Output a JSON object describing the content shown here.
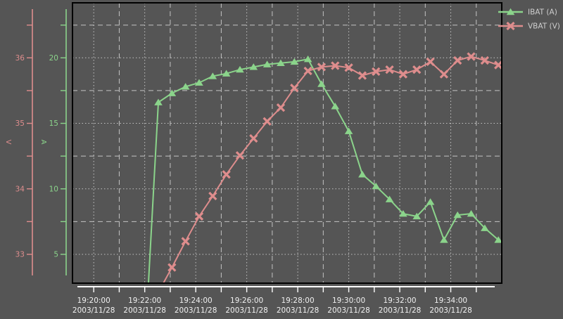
{
  "colors": {
    "background": "#555555",
    "plot_border": "#000000",
    "grid": "#c3c3c3",
    "x_axis_line": "#ffffff",
    "x_tick_label": "#f0f0f0",
    "legend_text": "#cfcfcf",
    "ibat_green": "#8bd48b",
    "vbat_pink": "#de8d8d"
  },
  "chart_data": {
    "type": "line",
    "title": "",
    "date": "2003/11/28",
    "x_axis": {
      "range": [
        "19:19:10",
        "19:36:00"
      ],
      "major_tick_labels": [
        "19:20:00",
        "19:22:00",
        "19:24:00",
        "19:26:00",
        "19:28:00",
        "19:30:00",
        "19:32:00",
        "19:34:00"
      ],
      "date_line": "2003/11/28",
      "minor_tick_interval_minutes": 1,
      "major_tick_interval_minutes": 2
    },
    "y_axes": [
      {
        "id": "V",
        "label": "V",
        "color": "#de8d8d",
        "range": [
          32.56,
          36.84
        ],
        "major_ticks": [
          36,
          35,
          34,
          33
        ],
        "minor_step": 0.5
      },
      {
        "id": "A",
        "label": "A",
        "color": "#8bd48b",
        "range": [
          2.8,
          24.2
        ],
        "major_ticks": [
          20,
          15,
          10,
          5
        ],
        "minor_step": 2.5
      }
    ],
    "grid": {
      "major_style": "dotted",
      "minor_style": "dashed",
      "on": true
    },
    "legend": {
      "position": "top-right",
      "entries": [
        "IBAT (A)",
        "VBAT (V)"
      ]
    },
    "series": [
      {
        "name": "IBAT (A)",
        "axis": "A",
        "color": "#8bd48b",
        "marker": "triangle",
        "points": [
          [
            "19:22:04",
            0.0
          ],
          [
            "19:22:32",
            16.6
          ],
          [
            "19:23:04",
            17.3
          ],
          [
            "19:23:36",
            17.8
          ],
          [
            "19:24:08",
            18.1
          ],
          [
            "19:24:40",
            18.6
          ],
          [
            "19:25:12",
            18.8
          ],
          [
            "19:25:44",
            19.1
          ],
          [
            "19:26:16",
            19.3
          ],
          [
            "19:26:48",
            19.5
          ],
          [
            "19:27:20",
            19.6
          ],
          [
            "19:27:52",
            19.7
          ],
          [
            "19:28:24",
            19.9
          ],
          [
            "19:28:56",
            18.0
          ],
          [
            "19:29:28",
            16.3
          ],
          [
            "19:30:00",
            14.4
          ],
          [
            "19:30:32",
            11.1
          ],
          [
            "19:31:04",
            10.2
          ],
          [
            "19:31:36",
            9.2
          ],
          [
            "19:32:08",
            8.1
          ],
          [
            "19:32:40",
            7.9
          ],
          [
            "19:33:12",
            9.0
          ],
          [
            "19:33:44",
            6.1
          ],
          [
            "19:34:16",
            8.0
          ],
          [
            "19:34:48",
            8.1
          ],
          [
            "19:35:20",
            7.0
          ],
          [
            "19:35:52",
            6.1
          ]
        ]
      },
      {
        "name": "VBAT (V)",
        "axis": "V",
        "color": "#de8d8d",
        "marker": "x",
        "points": [
          [
            "19:22:32",
            32.42
          ],
          [
            "19:23:04",
            32.8
          ],
          [
            "19:23:36",
            33.2
          ],
          [
            "19:24:08",
            33.58
          ],
          [
            "19:24:40",
            33.89
          ],
          [
            "19:25:12",
            34.22
          ],
          [
            "19:25:44",
            34.51
          ],
          [
            "19:26:16",
            34.77
          ],
          [
            "19:26:48",
            35.03
          ],
          [
            "19:27:20",
            35.24
          ],
          [
            "19:27:52",
            35.54
          ],
          [
            "19:28:24",
            35.8
          ],
          [
            "19:28:56",
            35.86
          ],
          [
            "19:29:28",
            35.88
          ],
          [
            "19:30:00",
            35.85
          ],
          [
            "19:30:32",
            35.73
          ],
          [
            "19:31:04",
            35.79
          ],
          [
            "19:31:36",
            35.82
          ],
          [
            "19:32:08",
            35.75
          ],
          [
            "19:32:40",
            35.82
          ],
          [
            "19:33:12",
            35.94
          ],
          [
            "19:33:44",
            35.75
          ],
          [
            "19:34:16",
            35.96
          ],
          [
            "19:34:48",
            36.02
          ],
          [
            "19:35:20",
            35.96
          ],
          [
            "19:35:52",
            35.89
          ]
        ]
      }
    ]
  }
}
